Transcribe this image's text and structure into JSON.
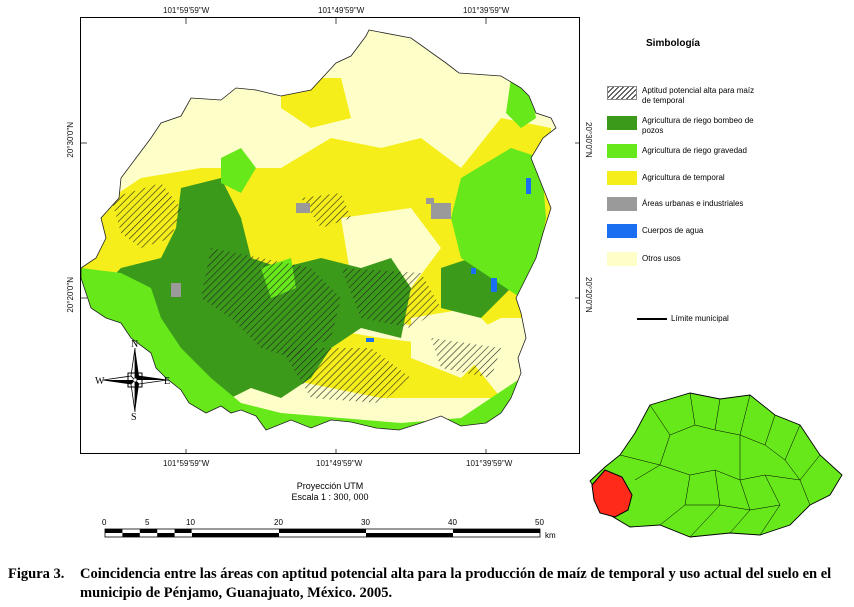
{
  "coordinates": {
    "top": [
      "101°59'59\"W",
      "101°49'59\"W",
      "101°39'59\"W"
    ],
    "bottom": [
      "101°59'59\"W",
      "101°49'59\"W",
      "101°39'59\"W"
    ],
    "left": [
      "20°30'0\"N",
      "20°20'0\"N"
    ],
    "right": [
      "20°30'0\"N",
      "20°20'0\"N"
    ]
  },
  "compass": {
    "n": "N",
    "s": "S",
    "e": "E",
    "w": "W"
  },
  "legend": {
    "title": "Simbología",
    "items": [
      {
        "label": "Aptitud potencial alta para maíz de temporal",
        "color": "#ffffff",
        "pattern": "hatch"
      },
      {
        "label": "Agricultura de riego bombeo de pozos",
        "color": "#3c9a1a"
      },
      {
        "label": "Agricultura de riego gravedad",
        "color": "#66e81a"
      },
      {
        "label": "Agricultura de temporal",
        "color": "#f5ee1a"
      },
      {
        "label": "Áreas urbanas e industriales",
        "color": "#9a9a9a"
      },
      {
        "label": "Cuerpos de agua",
        "color": "#1a6ef0"
      },
      {
        "label": "Otros usos",
        "color": "#fefec8"
      }
    ],
    "limit_label": "Límite municipal"
  },
  "projection": {
    "line1": "Proyección UTM",
    "line2": "Escala 1 : 300, 000"
  },
  "scale": {
    "ticks": [
      "0",
      "5",
      "10",
      "20",
      "30",
      "40",
      "50"
    ],
    "unit": "km"
  },
  "caption": {
    "figure": "Figura 3.",
    "text": "Coincidencia entre las áreas con aptitud potencial alta para la producción de maíz de temporal y uso actual del suelo en el municipio de Pénjamo, Guanajuato, México. 2005."
  },
  "inset": {
    "state_color": "#66e81a",
    "highlight_color": "#ff2a1a"
  }
}
